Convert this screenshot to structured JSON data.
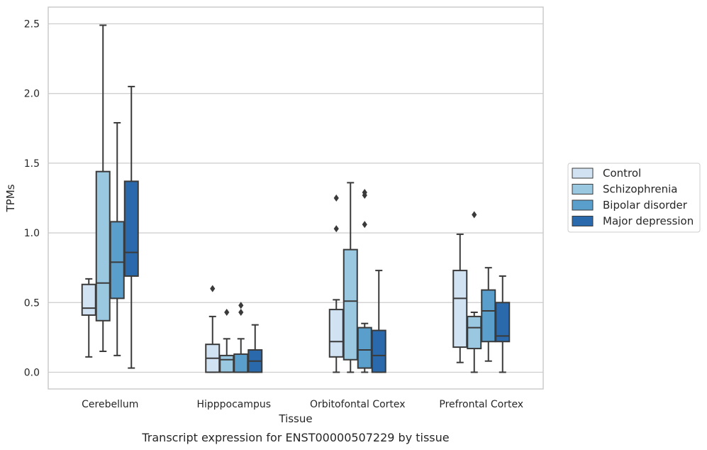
{
  "chart_data": {
    "type": "box",
    "title": "",
    "caption": "Transcript expression for ENST00000507229 by tissue",
    "xlabel": "Tissue",
    "ylabel": "TPMs",
    "ylim": [
      -0.12,
      2.62
    ],
    "yticks": [
      0.0,
      0.5,
      1.0,
      1.5,
      2.0,
      2.5
    ],
    "ytick_labels": [
      "0.0",
      "0.5",
      "1.0",
      "1.5",
      "2.0",
      "2.5"
    ],
    "grid": true,
    "legend_position": "right",
    "categories": [
      "Cerebellum",
      "Hipppocampus",
      "Orbitofontal Cortex",
      "Prefrontal Cortex"
    ],
    "series": [
      {
        "name": "Control",
        "color": "#d1e2f2",
        "boxes": [
          {
            "whisker_low": 0.11,
            "q1": 0.41,
            "median": 0.46,
            "q3": 0.63,
            "whisker_high": 0.67,
            "outliers": []
          },
          {
            "whisker_low": 0.0,
            "q1": 0.0,
            "median": 0.1,
            "q3": 0.2,
            "whisker_high": 0.4,
            "outliers": [
              0.6
            ]
          },
          {
            "whisker_low": 0.0,
            "q1": 0.11,
            "median": 0.22,
            "q3": 0.45,
            "whisker_high": 0.52,
            "outliers": [
              1.03,
              1.25
            ]
          },
          {
            "whisker_low": 0.07,
            "q1": 0.18,
            "median": 0.53,
            "q3": 0.73,
            "whisker_high": 0.99,
            "outliers": []
          }
        ]
      },
      {
        "name": "Schizophrenia",
        "color": "#9ac8e0",
        "boxes": [
          {
            "whisker_low": 0.15,
            "q1": 0.37,
            "median": 0.64,
            "q3": 1.44,
            "whisker_high": 2.49,
            "outliers": []
          },
          {
            "whisker_low": 0.0,
            "q1": 0.0,
            "median": 0.09,
            "q3": 0.12,
            "whisker_high": 0.24,
            "outliers": [
              0.43
            ]
          },
          {
            "whisker_low": 0.0,
            "q1": 0.09,
            "median": 0.51,
            "q3": 0.88,
            "whisker_high": 1.36,
            "outliers": []
          },
          {
            "whisker_low": 0.0,
            "q1": 0.17,
            "median": 0.32,
            "q3": 0.4,
            "whisker_high": 0.43,
            "outliers": [
              1.13
            ]
          }
        ]
      },
      {
        "name": "Bipolar disorder",
        "color": "#5a9fcc",
        "boxes": [
          {
            "whisker_low": 0.12,
            "q1": 0.53,
            "median": 0.79,
            "q3": 1.08,
            "whisker_high": 1.79,
            "outliers": []
          },
          {
            "whisker_low": 0.0,
            "q1": 0.0,
            "median": 0.0,
            "q3": 0.13,
            "whisker_high": 0.24,
            "outliers": [
              0.43,
              0.48
            ]
          },
          {
            "whisker_low": 0.0,
            "q1": 0.03,
            "median": 0.16,
            "q3": 0.32,
            "whisker_high": 0.35,
            "outliers": [
              1.06,
              1.27,
              1.29
            ]
          },
          {
            "whisker_low": 0.08,
            "q1": 0.22,
            "median": 0.44,
            "q3": 0.59,
            "whisker_high": 0.75,
            "outliers": []
          }
        ]
      },
      {
        "name": "Major depression",
        "color": "#2a6aac",
        "boxes": [
          {
            "whisker_low": 0.03,
            "q1": 0.69,
            "median": 0.86,
            "q3": 1.37,
            "whisker_high": 2.05,
            "outliers": []
          },
          {
            "whisker_low": 0.0,
            "q1": 0.0,
            "median": 0.08,
            "q3": 0.16,
            "whisker_high": 0.34,
            "outliers": []
          },
          {
            "whisker_low": 0.0,
            "q1": 0.0,
            "median": 0.12,
            "q3": 0.3,
            "whisker_high": 0.73,
            "outliers": []
          },
          {
            "whisker_low": 0.0,
            "q1": 0.22,
            "median": 0.26,
            "q3": 0.5,
            "whisker_high": 0.69,
            "outliers": []
          }
        ]
      }
    ]
  }
}
